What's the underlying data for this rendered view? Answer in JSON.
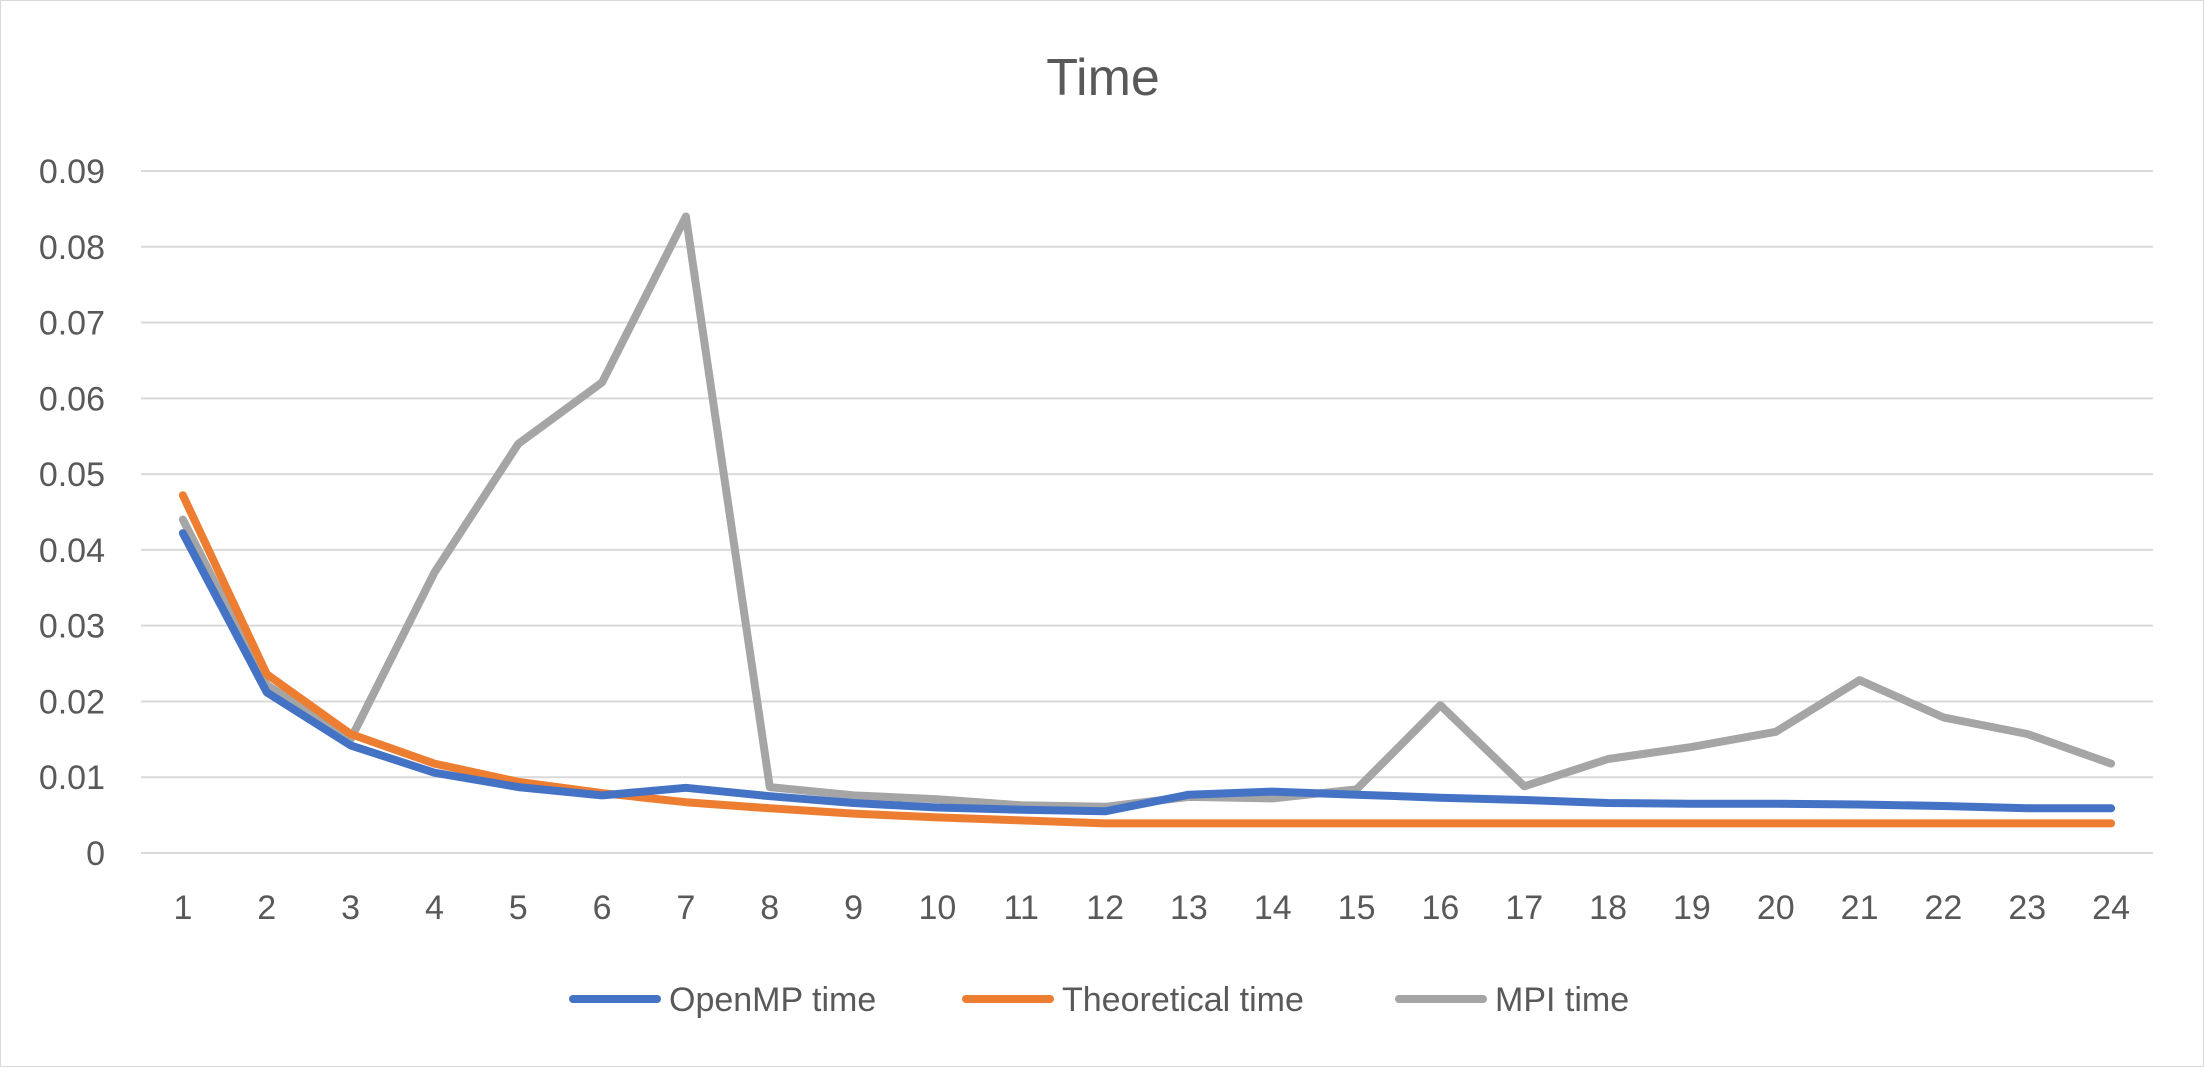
{
  "chart_data": {
    "type": "line",
    "title": "Time",
    "xlabel": "",
    "ylabel": "",
    "categories": [
      "1",
      "2",
      "3",
      "4",
      "5",
      "6",
      "7",
      "8",
      "9",
      "10",
      "11",
      "12",
      "13",
      "14",
      "15",
      "16",
      "17",
      "18",
      "19",
      "20",
      "21",
      "22",
      "23",
      "24"
    ],
    "ylim": [
      0,
      0.09
    ],
    "yticks": [
      "0",
      "0.01",
      "0.02",
      "0.03",
      "0.04",
      "0.05",
      "0.06",
      "0.07",
      "0.08",
      "0.09"
    ],
    "grid": true,
    "legend_position": "bottom",
    "series": [
      {
        "name": "OpenMP time",
        "color": "#4472c4",
        "values": [
          0.0422,
          0.0212,
          0.0142,
          0.0106,
          0.0087,
          0.0076,
          0.0086,
          0.0075,
          0.0066,
          0.006,
          0.0057,
          0.0055,
          0.0077,
          0.0081,
          0.0077,
          0.0073,
          0.007,
          0.0066,
          0.0065,
          0.0065,
          0.0064,
          0.0062,
          0.0059,
          0.0059
        ]
      },
      {
        "name": "Theoretical time",
        "color": "#ed7d31",
        "values": [
          0.0472,
          0.0236,
          0.0157,
          0.0118,
          0.0094,
          0.0079,
          0.0067,
          0.0059,
          0.0052,
          0.0047,
          0.0043,
          0.0039,
          0.0039,
          0.0039,
          0.0039,
          0.0039,
          0.0039,
          0.0039,
          0.0039,
          0.0039,
          0.0039,
          0.0039,
          0.0039,
          0.0039
        ]
      },
      {
        "name": "MPI time",
        "color": "#a5a5a5",
        "values": [
          0.044,
          0.0222,
          0.015,
          0.037,
          0.054,
          0.0621,
          0.084,
          0.0087,
          0.0076,
          0.0071,
          0.0063,
          0.0061,
          0.0074,
          0.0072,
          0.0084,
          0.0195,
          0.0088,
          0.0124,
          0.014,
          0.016,
          0.0228,
          0.0179,
          0.0157,
          0.0118
        ]
      }
    ]
  }
}
